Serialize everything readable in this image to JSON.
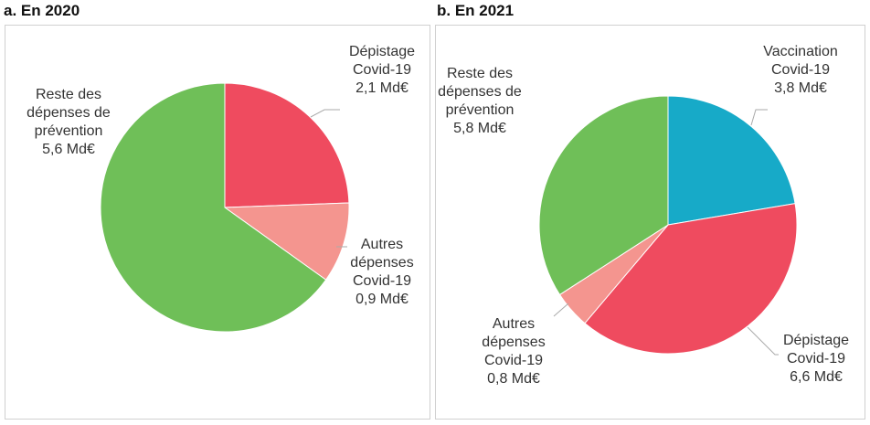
{
  "chart_data": [
    {
      "type": "pie",
      "title": "a. En 2020",
      "categories": [
        "Dépistage Covid-19",
        "Autres dépenses Covid-19",
        "Reste des dépenses de prévention"
      ],
      "values": [
        2.1,
        0.9,
        5.6
      ],
      "value_labels": [
        "2,1 Md€",
        "0,9 Md€",
        "5,6 Md€"
      ],
      "colors": [
        "#ef4b5f",
        "#f4958f",
        "#6fbf58"
      ]
    },
    {
      "type": "pie",
      "title": "b. En 2021",
      "categories": [
        "Vaccination Covid-19",
        "Dépistage Covid-19",
        "Autres dépenses Covid-19",
        "Reste des dépenses de prévention"
      ],
      "values": [
        3.8,
        6.6,
        0.8,
        5.8
      ],
      "value_labels": [
        "3,8 Md€",
        "6,6 Md€",
        "0,8 Md€",
        "5,8 Md€"
      ],
      "colors": [
        "#17aac8",
        "#ef4b5f",
        "#f4958f",
        "#6fbf58"
      ]
    }
  ]
}
